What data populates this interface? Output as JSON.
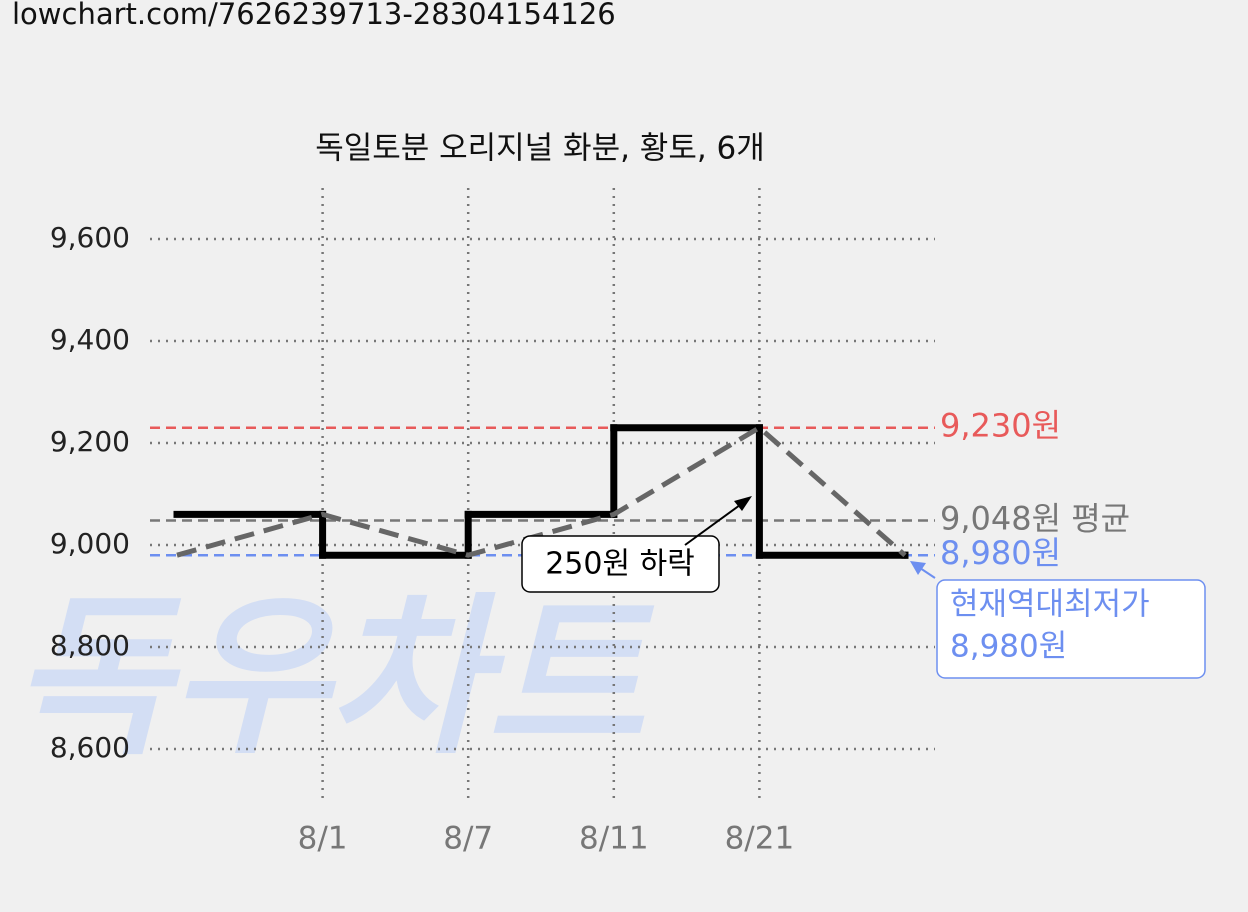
{
  "url": "lowchart.com/7626239713-28304154126",
  "chart_data": {
    "type": "line",
    "title": "독일토분 오리지널 화분, 황토, 6개",
    "watermark": "독우차트",
    "categories": [
      null,
      "8/1",
      "8/7",
      "8/11",
      "8/21",
      null
    ],
    "series": [
      {
        "color": "#000000",
        "step": "post",
        "values": [
          9060,
          8980,
          9060,
          9230,
          8980,
          8980
        ]
      },
      {
        "color": "#666666",
        "dashed": true,
        "values": [
          8980,
          9060,
          8980,
          9060,
          9230,
          8980
        ]
      }
    ],
    "ylim": [
      8500,
      9700
    ],
    "yticks": [
      {
        "value": 8600,
        "label": "8,600"
      },
      {
        "value": 8800,
        "label": "8,800"
      },
      {
        "value": 9000,
        "label": "9,000"
      },
      {
        "value": 9200,
        "label": "9,200"
      },
      {
        "value": 9400,
        "label": "9,400"
      },
      {
        "value": 9600,
        "label": "9,600"
      }
    ],
    "grid": true,
    "reference_lines": [
      {
        "value": 9230,
        "label": "9,230원",
        "color": "#e85a5a"
      },
      {
        "value": 9048,
        "label": "9,048원 평균",
        "color": "#777777"
      },
      {
        "value": 8980,
        "label": "8,980원",
        "color": "#6d8ff0"
      }
    ],
    "annotation": "250원 하락",
    "callout": [
      "현재역대최저가",
      "8,980원"
    ]
  }
}
